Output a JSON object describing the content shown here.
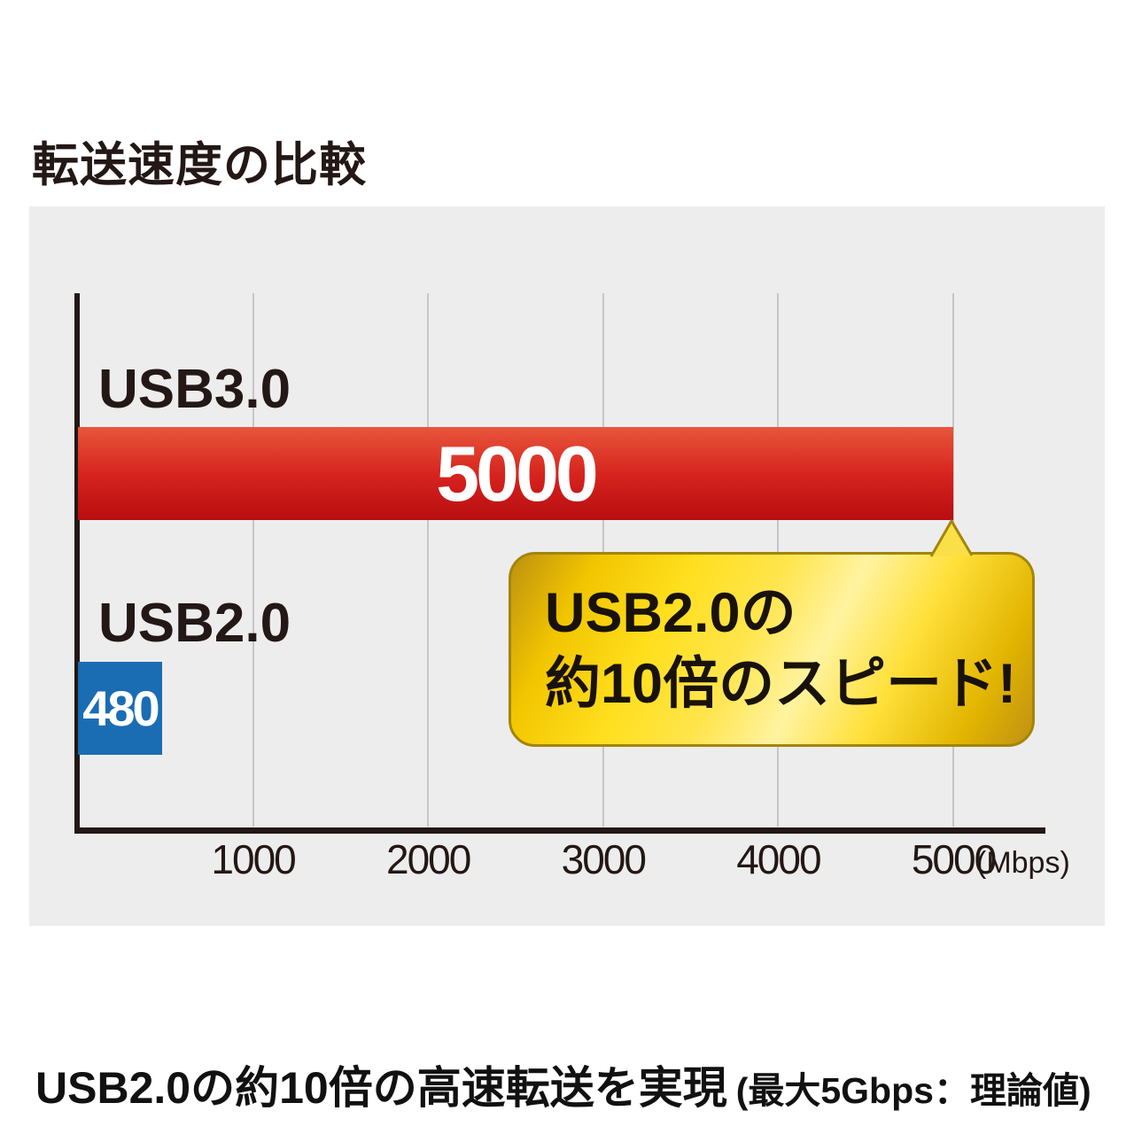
{
  "header": {
    "title": "転送速度の比較"
  },
  "chart_data": {
    "type": "bar",
    "orientation": "horizontal",
    "title": "転送速度の比較",
    "categories": [
      "USB3.0",
      "USB2.0"
    ],
    "values": [
      5000,
      480
    ],
    "x_ticks": [
      1000,
      2000,
      3000,
      4000,
      5000
    ],
    "x_unit": "(Mbps)",
    "xlim": [
      0,
      5000
    ],
    "grid": true,
    "legend": false,
    "annotation": {
      "line1": "USB2.0の",
      "line2": "約10倍のスピード!",
      "points_to_value": 5000
    }
  },
  "caption": {
    "main": "USB2.0の約10倍の高速転送を実現",
    "note": "(最大5Gbps：理論値)"
  },
  "colors": {
    "panel_bg": "#ededed",
    "gridline": "#c6c6c6",
    "axis": "#231815",
    "text_dark": "#231815",
    "bar_value_text": "#ffffff",
    "red_bar_top": "#e8563c",
    "red_bar_mid": "#d6231d",
    "red_bar_bottom": "#b80d11",
    "blue_bar": "#1a6db3",
    "bubble_border": "#a3850a",
    "bubble_gradient": [
      "#bd9110",
      "#f2c500",
      "#ffdf1e",
      "#ffe54d",
      "#fff3a0",
      "#ffe03a",
      "#e2b500",
      "#c09114"
    ],
    "tail_fill": "#fbdf48"
  }
}
